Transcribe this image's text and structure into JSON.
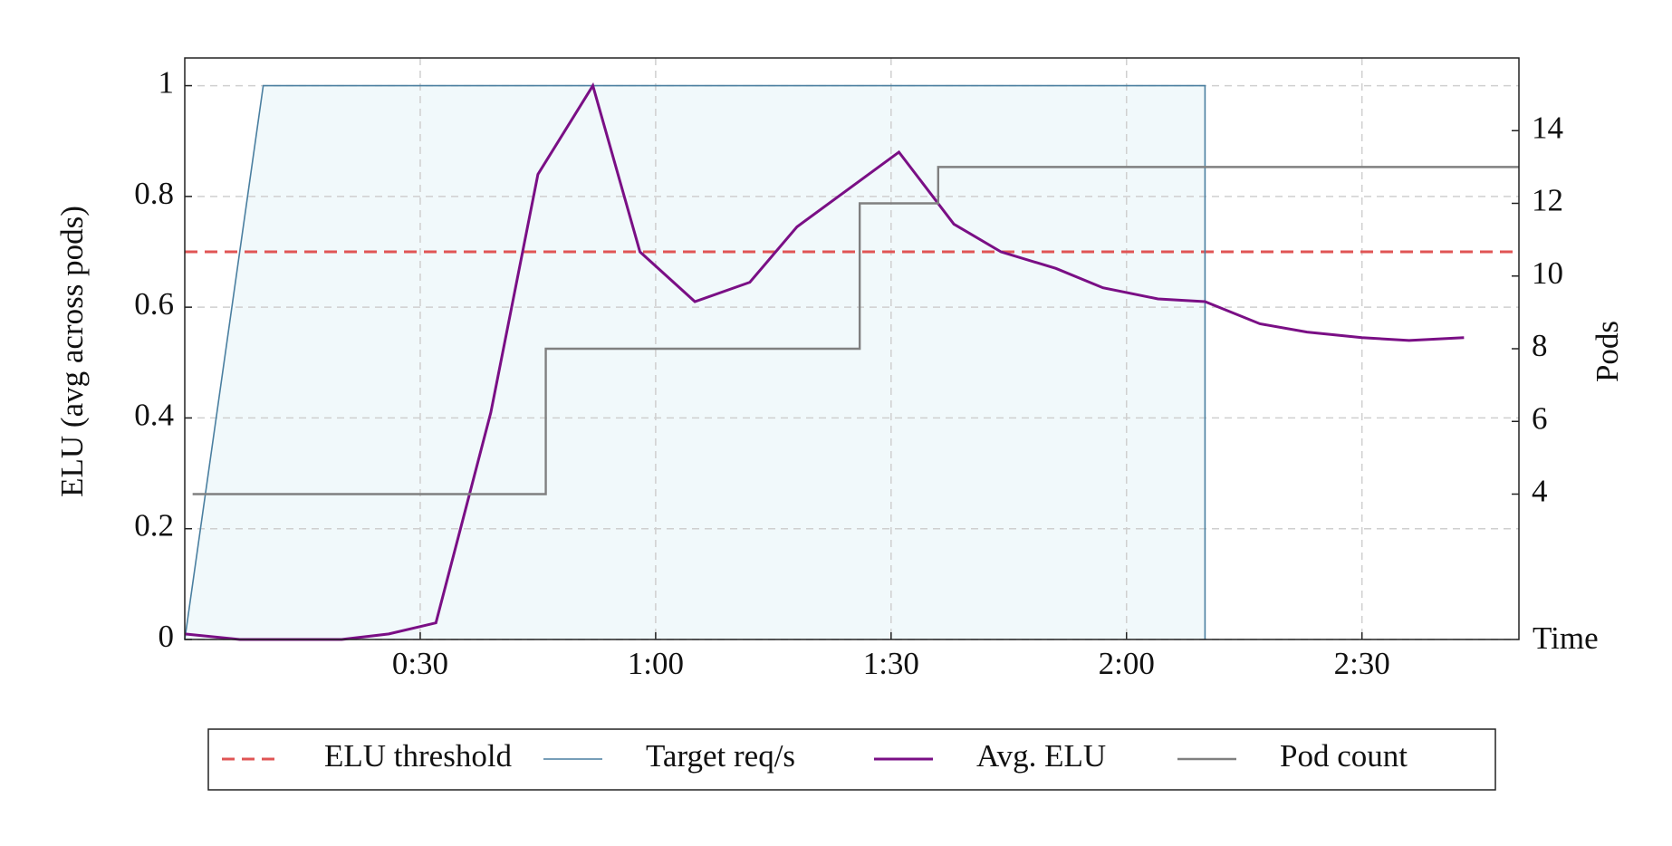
{
  "chart_data": {
    "type": "line",
    "y_label": "ELU (avg across pods)",
    "y2_label": "Pods",
    "x_label": "Time",
    "xlim": [
      0,
      170
    ],
    "ylim": [
      0,
      1.05
    ],
    "y2lim": [
      0,
      16
    ],
    "xticks": [
      {
        "value": 30,
        "label": "0:30"
      },
      {
        "value": 60,
        "label": "1:00"
      },
      {
        "value": 90,
        "label": "1:30"
      },
      {
        "value": 120,
        "label": "2:00"
      },
      {
        "value": 150,
        "label": "2:30"
      }
    ],
    "yticks": [
      0,
      0.2,
      0.4,
      0.6,
      0.8,
      1
    ],
    "y2ticks": [
      4,
      6,
      8,
      10,
      12,
      14
    ],
    "grid": true,
    "legend": "bottom",
    "series": [
      {
        "name": "ELU threshold",
        "color": "#e05555",
        "dashed": true,
        "line_width": 3,
        "x": [
          0,
          170
        ],
        "values": [
          0.7,
          0.7
        ]
      },
      {
        "name": "Target req/s",
        "color": "#4a7fa0",
        "fill": "#f1f9fb",
        "line_width": 1.6,
        "x": [
          0,
          10,
          130,
          130
        ],
        "values": [
          0,
          1,
          1,
          0
        ]
      },
      {
        "name": "Avg. ELU",
        "color": "#7a0f85",
        "line_width": 3,
        "x": [
          0,
          7,
          20,
          26,
          32,
          39,
          45,
          52,
          58,
          65,
          72,
          78,
          91,
          98,
          104,
          111,
          117,
          124,
          130,
          137,
          143,
          150,
          156,
          163
        ],
        "values": [
          0.01,
          0,
          0,
          0.01,
          0.03,
          0.41,
          0.84,
          1.0,
          0.7,
          0.61,
          0.645,
          0.745,
          0.88,
          0.75,
          0.7,
          0.67,
          0.635,
          0.615,
          0.61,
          0.57,
          0.555,
          0.545,
          0.54,
          0.545
        ]
      },
      {
        "name": "Pod count",
        "color": "#808080",
        "line_width": 2.4,
        "axis": "y2",
        "x": [
          1,
          46,
          46,
          86,
          86,
          96,
          96,
          170
        ],
        "values": [
          4,
          4,
          8,
          8,
          12,
          12,
          13,
          13
        ]
      }
    ]
  }
}
